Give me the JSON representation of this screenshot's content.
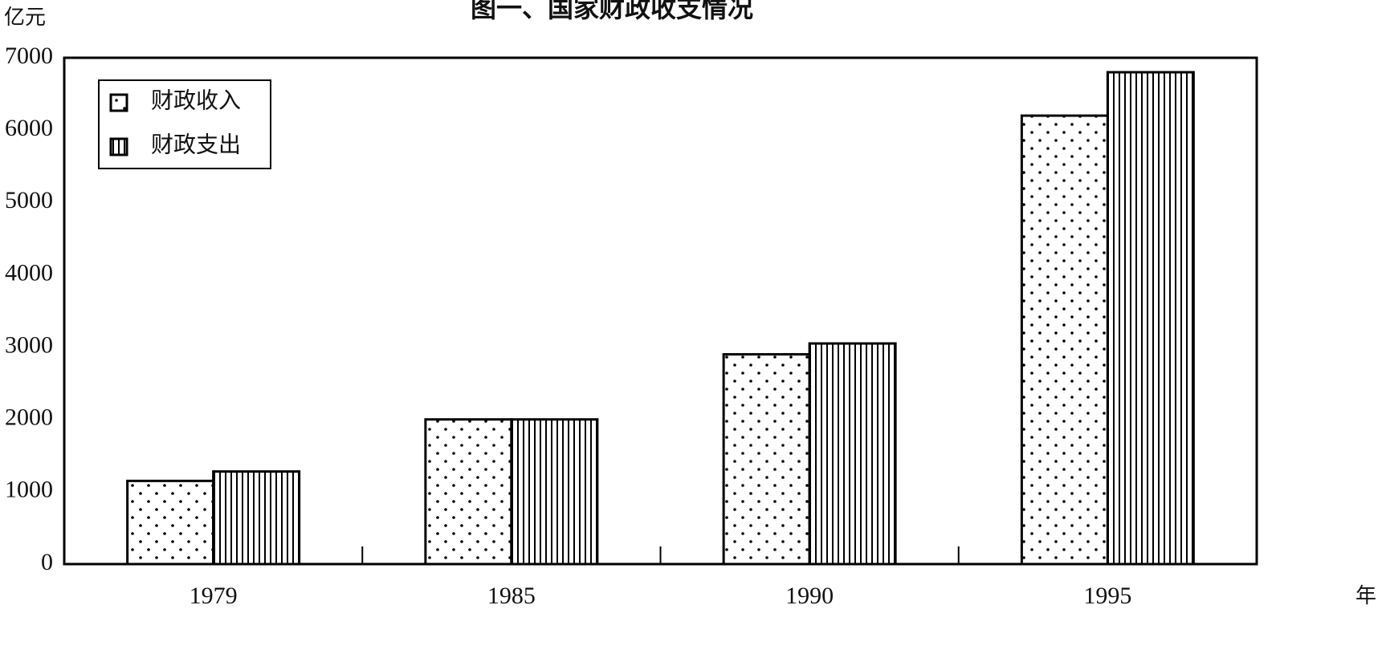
{
  "chart_data": {
    "type": "bar",
    "title": "图一、国家财政收支情况",
    "y_label": "亿元",
    "x_label": "年",
    "categories": [
      "1979",
      "1985",
      "1990",
      "1995"
    ],
    "series": [
      {
        "name": "财政收入",
        "color": "#000000",
        "pattern": "dots",
        "values": [
          1150,
          2000,
          2900,
          6200
        ]
      },
      {
        "name": "财政支出",
        "color": "#000000",
        "pattern": "vlines",
        "values": [
          1280,
          2000,
          3050,
          6800
        ]
      }
    ],
    "ylim": [
      0,
      7000
    ],
    "yticks": [
      0,
      1000,
      2000,
      3000,
      4000,
      5000,
      6000,
      7000
    ],
    "grid": false,
    "legend": "upper left"
  }
}
